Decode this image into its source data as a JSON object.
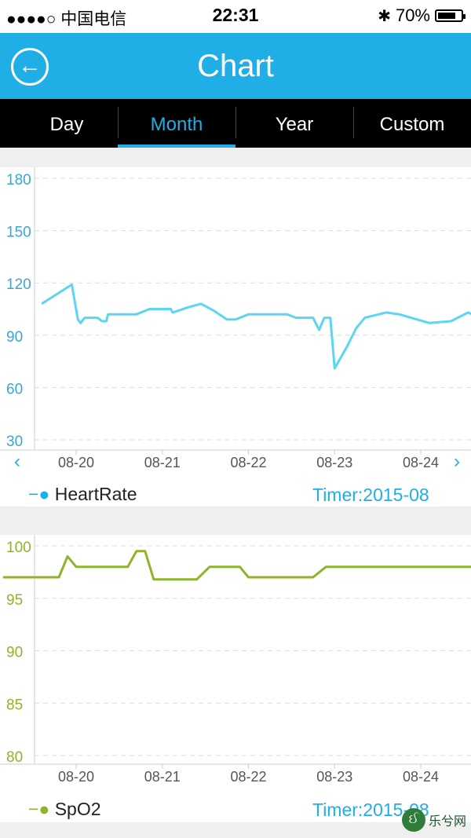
{
  "status_bar": {
    "signal": "●●●●○ 中国电信",
    "time": "22:31",
    "battery": "70%"
  },
  "header": {
    "title": "Chart"
  },
  "tabs": [
    {
      "label": "Day"
    },
    {
      "label": "Month"
    },
    {
      "label": "Year"
    },
    {
      "label": "Custom"
    }
  ],
  "active_tab": "Month",
  "colors": {
    "header": "#20aee6",
    "heart": "#5cd6f0",
    "spo2": "#8fb32b"
  },
  "heart_panel": {
    "legend": "HeartRate",
    "timer": "Timer:2015-08",
    "prev": "‹",
    "next": "›"
  },
  "spo2_panel": {
    "legend": "SpO2",
    "timer": "Timer:2015-08"
  },
  "watermark": {
    "text": "乐兮网"
  },
  "chart_data": [
    {
      "type": "line",
      "series": [
        {
          "name": "HeartRate",
          "values": [
            [
              -0.4,
              108
            ],
            [
              -0.05,
              119
            ],
            [
              0.02,
              99
            ],
            [
              0.05,
              97
            ],
            [
              0.1,
              100
            ],
            [
              0.25,
              100
            ],
            [
              0.3,
              98
            ],
            [
              0.35,
              98
            ],
            [
              0.37,
              102
            ],
            [
              0.7,
              102
            ],
            [
              0.85,
              105
            ],
            [
              1.1,
              105
            ],
            [
              1.12,
              103
            ],
            [
              1.3,
              106
            ],
            [
              1.45,
              108
            ],
            [
              1.6,
              104
            ],
            [
              1.75,
              99
            ],
            [
              1.85,
              99
            ],
            [
              2.0,
              102
            ],
            [
              2.45,
              102
            ],
            [
              2.55,
              100
            ],
            [
              2.75,
              100
            ],
            [
              2.82,
              93
            ],
            [
              2.88,
              100
            ],
            [
              2.95,
              100
            ],
            [
              3.0,
              71
            ],
            [
              3.15,
              84
            ],
            [
              3.25,
              94
            ],
            [
              3.35,
              100
            ],
            [
              3.6,
              103
            ],
            [
              3.75,
              102
            ],
            [
              4.1,
              97
            ],
            [
              4.35,
              98
            ],
            [
              4.55,
              103
            ],
            [
              4.72,
              99
            ],
            [
              4.78,
              95
            ],
            [
              4.88,
              94
            ],
            [
              4.97,
              97
            ]
          ]
        }
      ],
      "x_ticks": [
        "08-20",
        "08-21",
        "08-22",
        "08-23",
        "08-24"
      ],
      "y_ticks": [
        180,
        150,
        120,
        90,
        60,
        30
      ],
      "ylim": [
        30,
        180
      ],
      "grid": true,
      "legend": "bottom-left"
    },
    {
      "type": "line",
      "series": [
        {
          "name": "SpO2",
          "values": [
            [
              -0.85,
              97
            ],
            [
              -0.2,
              97
            ],
            [
              -0.1,
              99
            ],
            [
              0.0,
              98
            ],
            [
              0.6,
              98
            ],
            [
              0.7,
              99.5
            ],
            [
              0.8,
              99.5
            ],
            [
              0.9,
              96.8
            ],
            [
              1.4,
              96.8
            ],
            [
              1.55,
              98
            ],
            [
              1.9,
              98
            ],
            [
              2.0,
              97
            ],
            [
              2.75,
              97
            ],
            [
              2.9,
              98
            ],
            [
              4.65,
              98
            ],
            [
              4.85,
              97
            ]
          ]
        }
      ],
      "x_ticks": [
        "08-20",
        "08-21",
        "08-22",
        "08-23",
        "08-24"
      ],
      "y_ticks": [
        100,
        95,
        90,
        85,
        80
      ],
      "ylim": [
        80,
        100
      ],
      "grid": true,
      "legend": "bottom-left"
    }
  ]
}
